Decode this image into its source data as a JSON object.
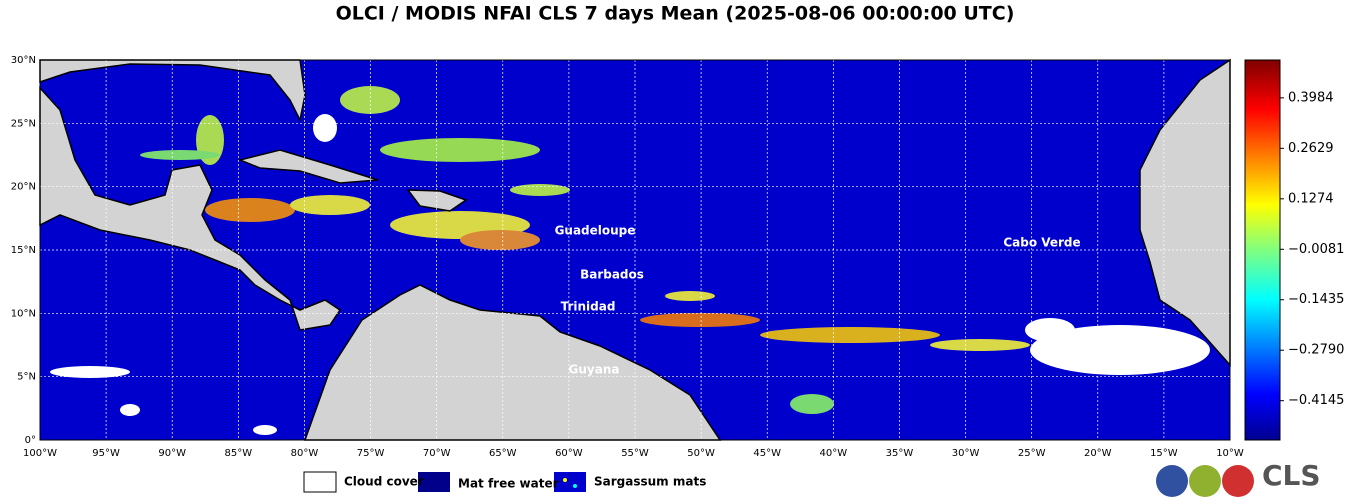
{
  "title": "OLCI / MODIS NFAI CLS 7 days Mean (2025-08-06 00:00:00 UTC)",
  "map": {
    "xlim": [
      -100,
      -10
    ],
    "ylim": [
      0,
      30
    ],
    "grid": true,
    "xticks": [
      {
        "value": -100,
        "label": "100°W"
      },
      {
        "value": -95,
        "label": "95°W"
      },
      {
        "value": -90,
        "label": "90°W"
      },
      {
        "value": -85,
        "label": "85°W"
      },
      {
        "value": -80,
        "label": "80°W"
      },
      {
        "value": -75,
        "label": "75°W"
      },
      {
        "value": -70,
        "label": "70°W"
      },
      {
        "value": -65,
        "label": "65°W"
      },
      {
        "value": -60,
        "label": "60°W"
      },
      {
        "value": -55,
        "label": "55°W"
      },
      {
        "value": -50,
        "label": "50°W"
      },
      {
        "value": -45,
        "label": "45°W"
      },
      {
        "value": -40,
        "label": "40°W"
      },
      {
        "value": -35,
        "label": "35°W"
      },
      {
        "value": -30,
        "label": "30°W"
      },
      {
        "value": -25,
        "label": "25°W"
      },
      {
        "value": -20,
        "label": "20°W"
      },
      {
        "value": -15,
        "label": "15°W"
      },
      {
        "value": -10,
        "label": "10°W"
      }
    ],
    "yticks": [
      {
        "value": 0,
        "label": "0°"
      },
      {
        "value": 5,
        "label": "5°N"
      },
      {
        "value": 10,
        "label": "10°N"
      },
      {
        "value": 15,
        "label": "15°N"
      },
      {
        "value": 20,
        "label": "20°N"
      },
      {
        "value": 25,
        "label": "25°N"
      },
      {
        "value": 30,
        "label": "30°N"
      }
    ]
  },
  "colorbar": {
    "lim": [
      -0.52,
      0.5
    ],
    "ticks": [
      {
        "value": 0.3984,
        "label": "0.3984"
      },
      {
        "value": 0.2629,
        "label": "0.2629"
      },
      {
        "value": 0.1274,
        "label": "0.1274"
      },
      {
        "value": -0.0081,
        "label": "−0.0081"
      },
      {
        "value": -0.1435,
        "label": "−0.1435"
      },
      {
        "value": -0.279,
        "label": "−0.2790"
      },
      {
        "value": -0.4145,
        "label": "−0.4145"
      }
    ]
  },
  "places": [
    "Guadeloupe",
    "Barbados",
    "Trinidad",
    "Guyana",
    "Cabo Verde"
  ],
  "legend": [
    "Cloud cover",
    "Mat free water",
    "Sargassum mats"
  ],
  "logo": "CLS"
}
